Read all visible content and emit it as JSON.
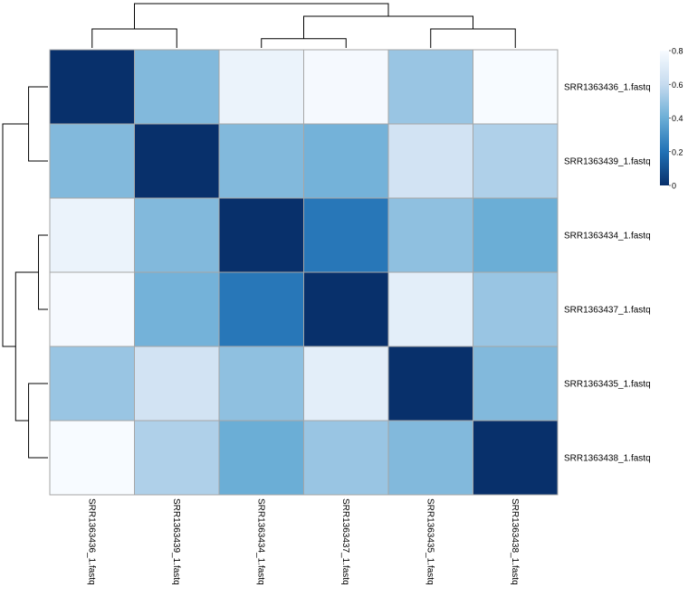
{
  "chart_data": {
    "type": "heatmap",
    "title": "",
    "rows": [
      "SRR1363436_1.fastq",
      "SRR1363439_1.fastq",
      "SRR1363434_1.fastq",
      "SRR1363437_1.fastq",
      "SRR1363435_1.fastq",
      "SRR1363438_1.fastq"
    ],
    "columns": [
      "SRR1363436_1.fastq",
      "SRR1363439_1.fastq",
      "SRR1363434_1.fastq",
      "SRR1363437_1.fastq",
      "SRR1363435_1.fastq",
      "SRR1363438_1.fastq"
    ],
    "values": [
      [
        0.0,
        0.45,
        0.75,
        0.79,
        0.5,
        0.8
      ],
      [
        0.45,
        0.0,
        0.45,
        0.42,
        0.65,
        0.55
      ],
      [
        0.75,
        0.45,
        0.0,
        0.22,
        0.48,
        0.4
      ],
      [
        0.79,
        0.42,
        0.22,
        0.0,
        0.72,
        0.5
      ],
      [
        0.5,
        0.65,
        0.48,
        0.72,
        0.0,
        0.45
      ],
      [
        0.8,
        0.55,
        0.4,
        0.5,
        0.45,
        0.0
      ]
    ],
    "color_scale": {
      "min": 0,
      "max": 0.8,
      "ticks": [
        0,
        0.2,
        0.4,
        0.6,
        0.8
      ],
      "tick_labels": [
        "0",
        "0.2",
        "0.4",
        "0.6",
        "0.8"
      ],
      "low_color": "#08306b",
      "high_color": "#f7fbff",
      "palette": "Blues (reversed)",
      "legend_placement": "top-right"
    },
    "column_dendrogram": {
      "position": "top",
      "merges": [
        {
          "left": "SRR1363434_1.fastq",
          "right": "SRR1363437_1.fastq",
          "height": 0.22
        },
        {
          "left": "SRR1363436_1.fastq",
          "right": "SRR1363439_1.fastq",
          "height": 0.45
        },
        {
          "left": "SRR1363435_1.fastq",
          "right": "SRR1363438_1.fastq",
          "height": 0.45
        },
        {
          "left": "cluster(SRR1363434_1.fastq,SRR1363437_1.fastq)",
          "right": "cluster(SRR1363435_1.fastq,SRR1363438_1.fastq)",
          "height": 0.75
        },
        {
          "left": "cluster(SRR1363436_1.fastq,SRR1363439_1.fastq)",
          "right": "cluster(SRR1363434_1.fastq,SRR1363437_1.fastq,SRR1363435_1.fastq,SRR1363438_1.fastq)",
          "height": 1.05
        }
      ]
    },
    "row_dendrogram": {
      "position": "left",
      "merges": [
        {
          "left": "SRR1363434_1.fastq",
          "right": "SRR1363437_1.fastq",
          "height": 0.22
        },
        {
          "left": "SRR1363436_1.fastq",
          "right": "SRR1363439_1.fastq",
          "height": 0.45
        },
        {
          "left": "SRR1363435_1.fastq",
          "right": "SRR1363438_1.fastq",
          "height": 0.45
        },
        {
          "left": "cluster(SRR1363434_1.fastq,SRR1363437_1.fastq)",
          "right": "cluster(SRR1363435_1.fastq,SRR1363438_1.fastq)",
          "height": 0.75
        },
        {
          "left": "cluster(SRR1363436_1.fastq,SRR1363439_1.fastq)",
          "right": "cluster(SRR1363434_1.fastq,SRR1363437_1.fastq,SRR1363435_1.fastq,SRR1363438_1.fastq)",
          "height": 1.05
        }
      ]
    },
    "grid": true,
    "xlabel": "",
    "ylabel": ""
  }
}
